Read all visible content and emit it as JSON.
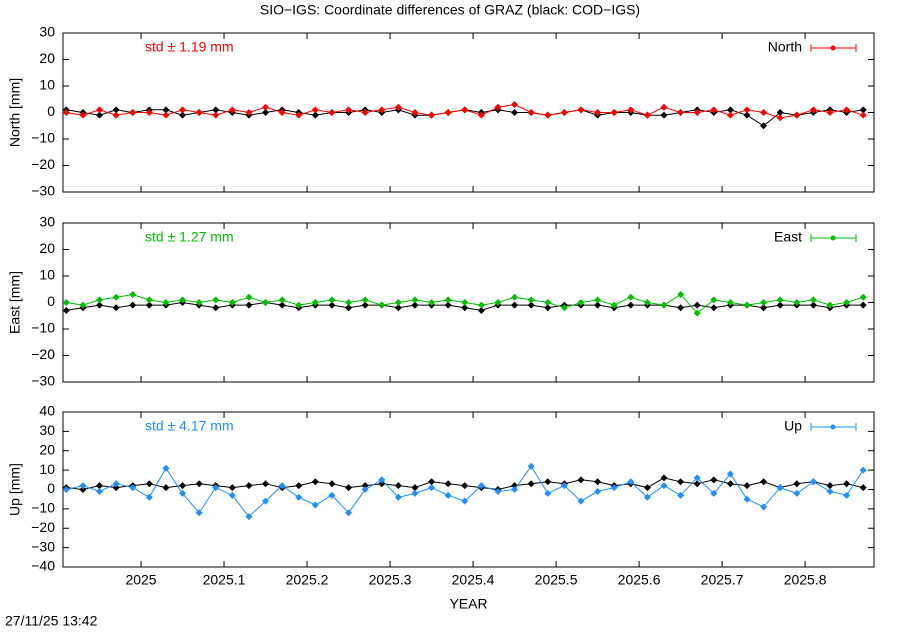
{
  "title": "SIO−IGS: Coordinate differences of GRAZ (black: COD−IGS)",
  "timestamp": "27/11/25 13:42",
  "chart_data": [
    {
      "type": "line",
      "ylabel": "North [mm]",
      "annotation": "std ± 1.19 mm",
      "x": [
        2024.91,
        2024.93,
        2024.95,
        2024.97,
        2024.99,
        2025.01,
        2025.03,
        2025.05,
        2025.07,
        2025.09,
        2025.11,
        2025.13,
        2025.15,
        2025.17,
        2025.19,
        2025.21,
        2025.23,
        2025.25,
        2025.27,
        2025.29,
        2025.31,
        2025.33,
        2025.35,
        2025.37,
        2025.39,
        2025.41,
        2025.43,
        2025.45,
        2025.47,
        2025.49,
        2025.51,
        2025.53,
        2025.55,
        2025.57,
        2025.59,
        2025.61,
        2025.63,
        2025.65,
        2025.67,
        2025.69,
        2025.71,
        2025.73,
        2025.75,
        2025.77,
        2025.79,
        2025.81,
        2025.83,
        2025.85,
        2025.87
      ],
      "xlim": [
        2024.906,
        2025.883
      ],
      "xticks": [
        2025,
        2025.1,
        2025.2,
        2025.3,
        2025.4,
        2025.5,
        2025.6,
        2025.7,
        2025.8
      ],
      "ylim": [
        -30,
        30
      ],
      "yticks": [
        {
          "value": -30,
          "label": "−30"
        },
        {
          "value": -20,
          "label": "−20"
        },
        {
          "value": -10,
          "label": "−10"
        },
        0,
        10,
        20,
        30
      ],
      "series": [
        {
          "color": "#000000",
          "values": [
            1,
            0,
            -1,
            1,
            0,
            1,
            1,
            -1,
            0,
            1,
            0,
            -1,
            0,
            1,
            0,
            -1,
            0,
            0,
            1,
            0,
            1,
            -1,
            -1,
            0,
            1,
            0,
            1,
            0,
            0,
            -1,
            0,
            1,
            -1,
            0,
            0,
            -1,
            -1,
            0,
            1,
            0,
            1,
            -1,
            -5,
            0,
            -1,
            0,
            1,
            0,
            1
          ]
        },
        {
          "name": "North",
          "color": "#ff0000",
          "values": [
            0,
            -1,
            1,
            -1,
            0,
            0,
            -1,
            1,
            0,
            -1,
            1,
            0,
            2,
            0,
            -1,
            1,
            0,
            1,
            0,
            1,
            2,
            0,
            -1,
            0,
            1,
            -1,
            2,
            3,
            0,
            -1,
            0,
            1,
            0,
            0,
            1,
            -1,
            2,
            0,
            0,
            1,
            -1,
            1,
            0,
            -2,
            -1,
            1,
            0,
            1,
            -1
          ]
        }
      ]
    },
    {
      "type": "line",
      "ylabel": "East [mm]",
      "annotation": "std ± 1.27 mm",
      "x": [
        2024.91,
        2024.93,
        2024.95,
        2024.97,
        2024.99,
        2025.01,
        2025.03,
        2025.05,
        2025.07,
        2025.09,
        2025.11,
        2025.13,
        2025.15,
        2025.17,
        2025.19,
        2025.21,
        2025.23,
        2025.25,
        2025.27,
        2025.29,
        2025.31,
        2025.33,
        2025.35,
        2025.37,
        2025.39,
        2025.41,
        2025.43,
        2025.45,
        2025.47,
        2025.49,
        2025.51,
        2025.53,
        2025.55,
        2025.57,
        2025.59,
        2025.61,
        2025.63,
        2025.65,
        2025.67,
        2025.69,
        2025.71,
        2025.73,
        2025.75,
        2025.77,
        2025.79,
        2025.81,
        2025.83,
        2025.85,
        2025.87
      ],
      "xlim": [
        2024.906,
        2025.883
      ],
      "xticks": [
        2025,
        2025.1,
        2025.2,
        2025.3,
        2025.4,
        2025.5,
        2025.6,
        2025.7,
        2025.8
      ],
      "ylim": [
        -30,
        30
      ],
      "yticks": [
        {
          "value": -30,
          "label": "−30"
        },
        {
          "value": -20,
          "label": "−20"
        },
        {
          "value": -10,
          "label": "−10"
        },
        0,
        10,
        20,
        30
      ],
      "series": [
        {
          "color": "#000000",
          "values": [
            -3,
            -2,
            -1,
            -2,
            -1,
            -1,
            -1,
            0,
            -1,
            -2,
            -1,
            -1,
            0,
            -1,
            -2,
            -1,
            -1,
            -2,
            -1,
            -1,
            -2,
            -1,
            -1,
            -1,
            -2,
            -3,
            -1,
            -1,
            -1,
            -2,
            -1,
            -1,
            -1,
            -2,
            -1,
            -1,
            -1,
            -2,
            -1,
            -2,
            -1,
            -1,
            -2,
            -1,
            -1,
            -1,
            -2,
            -1,
            -1
          ]
        },
        {
          "name": "East",
          "color": "#00c000",
          "values": [
            0,
            -1,
            1,
            2,
            3,
            1,
            0,
            1,
            0,
            1,
            0,
            2,
            0,
            1,
            -1,
            0,
            1,
            0,
            1,
            -1,
            0,
            1,
            0,
            1,
            0,
            -1,
            0,
            2,
            1,
            0,
            -2,
            0,
            1,
            -1,
            2,
            0,
            -1,
            3,
            -4,
            1,
            0,
            -1,
            0,
            1,
            0,
            1,
            -1,
            0,
            2
          ]
        }
      ]
    },
    {
      "type": "line",
      "ylabel": "Up [mm]",
      "annotation": "std ± 4.17 mm",
      "xlabel": "YEAR",
      "x": [
        2024.91,
        2024.93,
        2024.95,
        2024.97,
        2024.99,
        2025.01,
        2025.03,
        2025.05,
        2025.07,
        2025.09,
        2025.11,
        2025.13,
        2025.15,
        2025.17,
        2025.19,
        2025.21,
        2025.23,
        2025.25,
        2025.27,
        2025.29,
        2025.31,
        2025.33,
        2025.35,
        2025.37,
        2025.39,
        2025.41,
        2025.43,
        2025.45,
        2025.47,
        2025.49,
        2025.51,
        2025.53,
        2025.55,
        2025.57,
        2025.59,
        2025.61,
        2025.63,
        2025.65,
        2025.67,
        2025.69,
        2025.71,
        2025.73,
        2025.75,
        2025.77,
        2025.79,
        2025.81,
        2025.83,
        2025.85,
        2025.87
      ],
      "xlim": [
        2024.906,
        2025.883
      ],
      "xticks": [
        2025,
        2025.1,
        2025.2,
        2025.3,
        2025.4,
        2025.5,
        2025.6,
        2025.7,
        2025.8
      ],
      "ylim": [
        -40,
        40
      ],
      "yticks": [
        {
          "value": -40,
          "label": "−40"
        },
        {
          "value": -30,
          "label": "−30"
        },
        {
          "value": -20,
          "label": "−20"
        },
        {
          "value": -10,
          "label": "−10"
        },
        0,
        10,
        20,
        30,
        40
      ],
      "series": [
        {
          "color": "#000000",
          "values": [
            1,
            0,
            2,
            1,
            2,
            3,
            1,
            2,
            3,
            2,
            1,
            2,
            3,
            1,
            2,
            4,
            3,
            1,
            2,
            3,
            2,
            1,
            4,
            3,
            2,
            1,
            0,
            2,
            3,
            4,
            3,
            5,
            4,
            2,
            3,
            1,
            6,
            4,
            3,
            5,
            3,
            2,
            4,
            1,
            3,
            4,
            2,
            3,
            1
          ]
        },
        {
          "name": "Up",
          "color": "#1e90ff",
          "values": [
            0,
            2,
            -1,
            3,
            1,
            -4,
            11,
            -2,
            -12,
            1,
            -3,
            -14,
            -6,
            2,
            -4,
            -8,
            -3,
            -12,
            0,
            5,
            -4,
            -2,
            1,
            -3,
            -6,
            2,
            -1,
            0,
            12,
            -2,
            2,
            -6,
            -1,
            1,
            4,
            -4,
            2,
            -3,
            6,
            -2,
            8,
            -5,
            -9,
            1,
            -2,
            4,
            -1,
            -3,
            10
          ]
        }
      ]
    }
  ]
}
